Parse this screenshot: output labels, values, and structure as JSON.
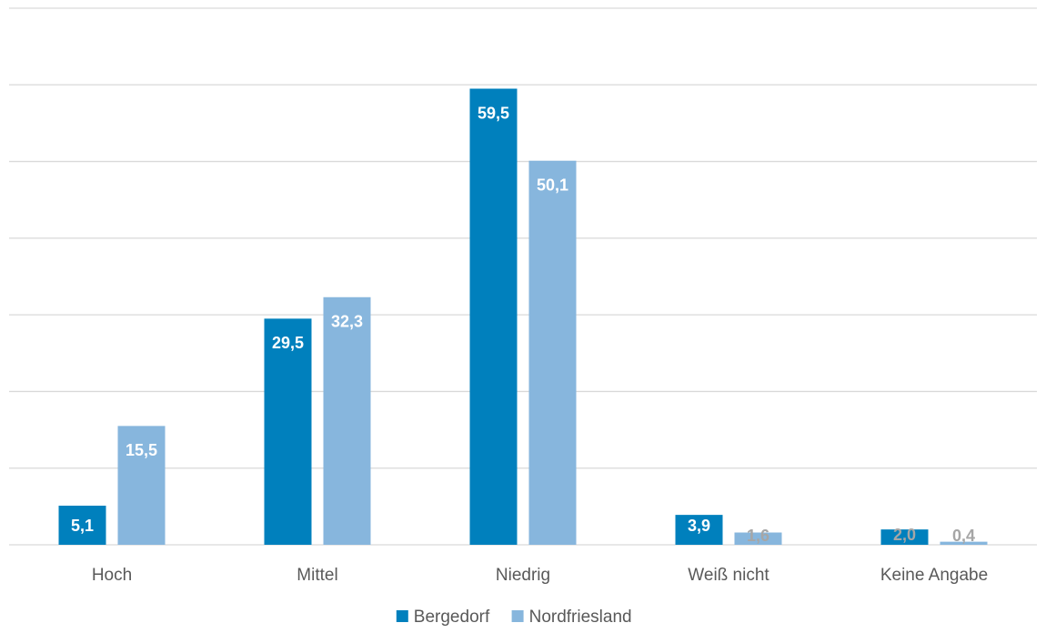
{
  "chart_data": {
    "type": "bar",
    "categories": [
      "Hoch",
      "Mittel",
      "Niedrig",
      "Weiß nicht",
      "Keine Angabe"
    ],
    "series": [
      {
        "name": "Bergedorf",
        "values": [
          5.1,
          29.5,
          59.5,
          3.9,
          2.0
        ],
        "labels": [
          "5,1",
          "29,5",
          "59,5",
          "3,9",
          "2,0"
        ],
        "color": "#0080BD"
      },
      {
        "name": "Nordfriesland",
        "values": [
          15.5,
          32.3,
          50.1,
          1.6,
          0.4
        ],
        "labels": [
          "15,5",
          "32,3",
          "50,1",
          "1,6",
          "0,4"
        ],
        "color": "#87B6DD"
      }
    ],
    "ylim": [
      0,
      70
    ],
    "grid": true,
    "legend_position": "bottom",
    "label_colors": {
      "inside": "#ffffff",
      "outside": "#a6a6a6"
    }
  }
}
